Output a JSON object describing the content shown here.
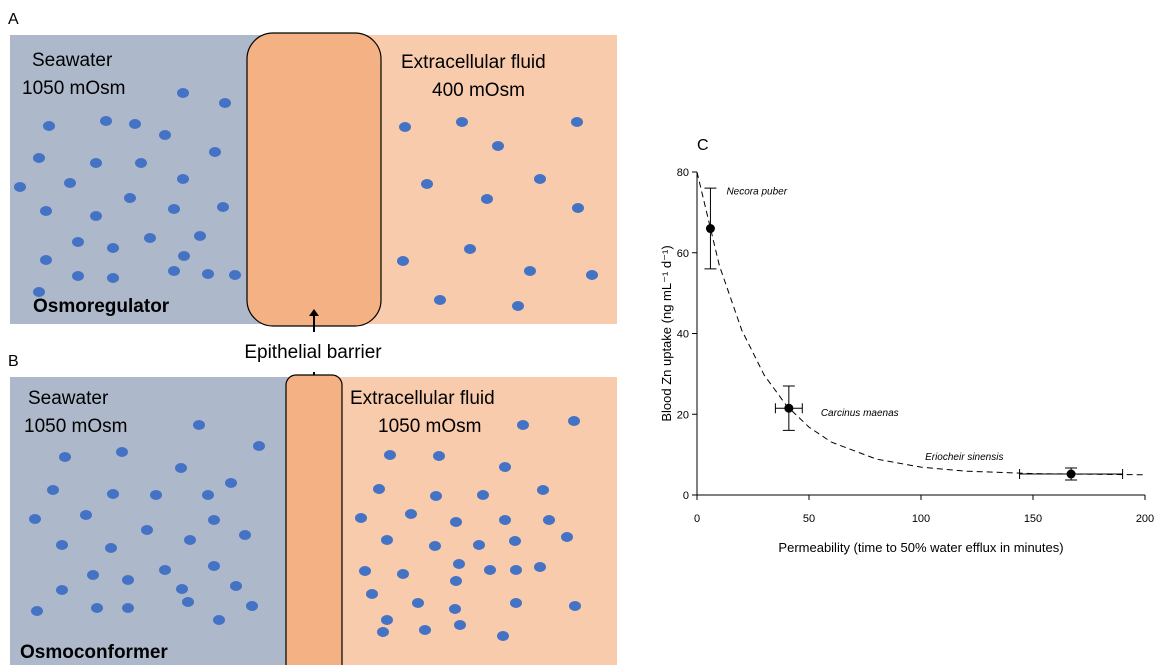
{
  "panel_a": {
    "label": "A",
    "left_title": "Seawater",
    "left_value": "1050 mOsm",
    "right_title": "Extracellular fluid",
    "right_value": "400 mOsm",
    "caption": "Osmoregulator"
  },
  "barrier_label": "Epithelial barrier",
  "panel_b": {
    "label": "B",
    "left_title": "Seawater",
    "left_value": "1050 mOsm",
    "right_title": "Extracellular fluid",
    "right_value": "1050 mOsm",
    "caption": "Osmoconformer"
  },
  "chart_data": {
    "type": "scatter",
    "panel_label": "C",
    "x_label": "Permeability (time to 50% water efflux in minutes)",
    "y_label": "Blood Zn uptake (ng mL⁻¹ d⁻¹)",
    "xlim": [
      0,
      200
    ],
    "ylim": [
      0,
      80
    ],
    "xticks": [
      0,
      50,
      100,
      150,
      200
    ],
    "yticks": [
      0,
      20,
      40,
      60,
      80
    ],
    "grid": false,
    "color": "#000000",
    "point_labels": [
      "Necora puber",
      "Carcinus maenas",
      "Eriocheir sinensis"
    ],
    "x": [
      6,
      41,
      167
    ],
    "values": [
      66,
      21.5,
      5.2
    ],
    "y_errors": [
      10,
      5.5,
      1.5
    ],
    "x_errors": [
      null,
      6,
      23
    ],
    "fit": {
      "x": [
        0,
        10,
        20,
        30,
        40,
        50,
        60,
        80,
        100,
        120,
        150,
        200
      ],
      "values": [
        80,
        56.8,
        40.8,
        29.7,
        22.1,
        16.8,
        13.1,
        8.9,
        6.9,
        5.9,
        5.3,
        5.0
      ]
    }
  }
}
